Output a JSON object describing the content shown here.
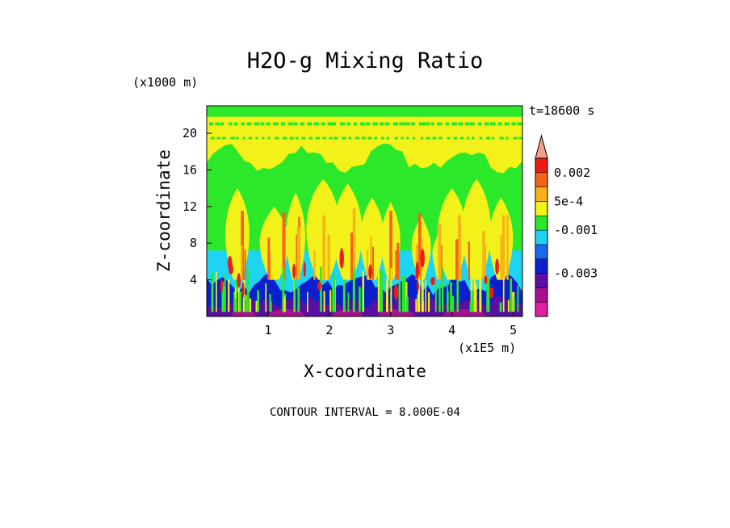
{
  "chart_data": {
    "type": "heatmap",
    "title": "H2O-g Mixing Ratio",
    "xlabel": "X-coordinate",
    "ylabel": "Z-coordinate",
    "x_unit": "(x1E5 m)",
    "y_unit": "(x1000 m)",
    "time_label": "t=18600 s",
    "footer": "CONTOUR INTERVAL = 8.000E-04",
    "xlim": [
      0,
      5.15
    ],
    "ylim": [
      0,
      23
    ],
    "x_ticks": [
      "1",
      "2",
      "3",
      "4",
      "5"
    ],
    "y_ticks": [
      "4",
      "8",
      "12",
      "16",
      "20"
    ],
    "colorbar": {
      "colors": [
        "#e21ea6",
        "#a81092",
        "#5a0fa2",
        "#0a1fcd",
        "#1b69ef",
        "#1fd3f2",
        "#2be82b",
        "#f2f21a",
        "#f8b218",
        "#f46314",
        "#ec1c14",
        "#f49d8d"
      ],
      "labels": [
        "0.002",
        "5e-4",
        "-0.001",
        "-0.003"
      ]
    },
    "layers": [
      {
        "name": "bottom",
        "z": [
          0,
          1
        ]
      },
      {
        "name": "blue",
        "z": [
          1,
          4.5
        ]
      },
      {
        "name": "cyan",
        "z": [
          4.5,
          7
        ]
      },
      {
        "name": "green",
        "z": [
          7,
          23
        ]
      }
    ]
  }
}
